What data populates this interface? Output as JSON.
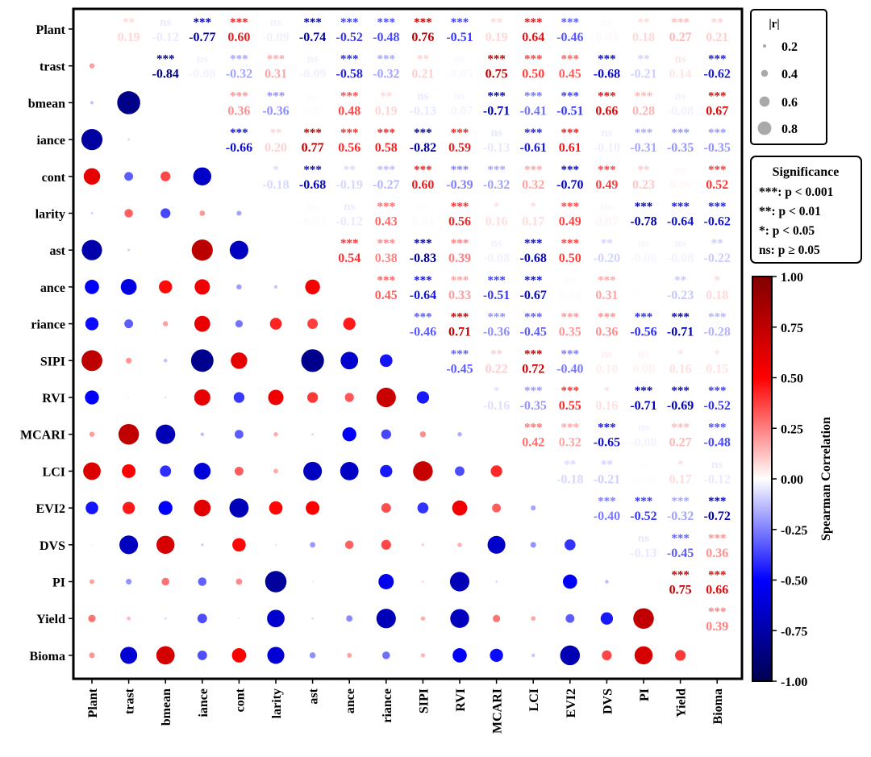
{
  "chart_data": {
    "type": "heatmap",
    "subtype": "correlation-matrix (lower: circles sized by |r|, upper: r values with significance stars)",
    "variables": [
      "Plant",
      "trast",
      "bmean",
      "iance",
      "cont",
      "larity",
      "ast",
      "ance",
      "riance",
      "SIPI",
      "RVI",
      "MCARI",
      "LCI",
      "EVI2",
      "DVS",
      "PI",
      "Yield",
      "Bioma"
    ],
    "upper": [
      [
        "",
        "**",
        "ns",
        "***",
        "***",
        "ns",
        "***",
        "***",
        "***",
        "***",
        "***",
        "**",
        "***",
        "***",
        "ns",
        "**",
        "***",
        "**"
      ],
      [
        "0.19",
        "-0.12",
        "-0.77",
        "0.60",
        "-0.09",
        "-0.74",
        "-0.52",
        "-0.48",
        "0.76",
        "-0.51",
        "0.19",
        "0.64",
        "-0.46",
        "0.05",
        "0.18",
        "0.27",
        "0.21"
      ],
      [
        "",
        "",
        "***",
        "ns",
        "***",
        "***",
        "ns",
        "***",
        "***",
        "**",
        "ns",
        "***",
        "***",
        "***",
        "***",
        "**",
        "ns",
        "***"
      ],
      [
        "-0.84",
        "-0.08",
        "-0.32",
        "0.31",
        "-0.09",
        "-0.58",
        "-0.32",
        "0.21",
        "-0.05",
        "0.75",
        "0.50",
        "0.45",
        "-0.68",
        "-0.21",
        "0.14",
        "-0.62"
      ],
      [
        "",
        "",
        "",
        "ns",
        "***",
        "***",
        "ns",
        "***",
        "**",
        "ns",
        "ns",
        "***",
        "***",
        "***",
        "***",
        "***",
        "ns",
        "***"
      ],
      [
        "-0.01",
        "0.36",
        "-0.36",
        "0.03",
        "0.48",
        "0.19",
        "-0.13",
        "-0.07",
        "-0.71",
        "-0.41",
        "-0.51",
        "0.66",
        "0.28",
        "-0.08",
        "0.67"
      ]
    ],
    "r_rows": [
      [
        null,
        0.19,
        -0.12,
        -0.77,
        0.6,
        -0.09,
        -0.74,
        -0.52,
        -0.48,
        0.76,
        -0.51,
        0.19,
        0.64,
        -0.46,
        0.05,
        0.18,
        0.27,
        0.21
      ],
      [
        null,
        null,
        -0.84,
        -0.08,
        -0.32,
        0.31,
        -0.09,
        -0.58,
        -0.32,
        0.21,
        -0.05,
        0.75,
        0.5,
        0.45,
        -0.68,
        -0.21,
        0.14,
        -0.62
      ],
      [
        null,
        null,
        null,
        -0.01,
        0.36,
        -0.36,
        0.03,
        0.48,
        0.19,
        -0.13,
        -0.07,
        -0.71,
        -0.41,
        -0.51,
        0.66,
        0.28,
        -0.08,
        0.67
      ],
      [
        null,
        null,
        null,
        null,
        -0.66,
        0.2,
        0.77,
        0.56,
        0.58,
        -0.82,
        0.59,
        -0.13,
        -0.61,
        0.61,
        -0.1,
        -0.31,
        -0.35,
        -0.35
      ],
      [
        null,
        null,
        null,
        null,
        null,
        -0.18,
        -0.68,
        -0.19,
        -0.27,
        0.6,
        -0.39,
        -0.32,
        0.32,
        -0.7,
        0.49,
        0.23,
        0.06,
        0.52
      ],
      [
        null,
        null,
        null,
        null,
        null,
        null,
        -0.03,
        -0.12,
        0.43,
        0.04,
        0.56,
        0.16,
        0.17,
        0.49,
        0.07,
        -0.78,
        -0.64,
        -0.62
      ],
      [
        null,
        null,
        null,
        null,
        null,
        null,
        null,
        0.54,
        0.38,
        -0.83,
        0.39,
        -0.08,
        -0.68,
        0.5,
        -0.2,
        -0.06,
        -0.08,
        -0.22
      ],
      [
        null,
        null,
        null,
        null,
        null,
        null,
        null,
        null,
        0.45,
        -0.64,
        0.33,
        -0.51,
        -0.67,
        0.04,
        0.31,
        0.02,
        -0.23,
        0.18
      ],
      [
        null,
        null,
        null,
        null,
        null,
        null,
        null,
        null,
        null,
        -0.46,
        0.71,
        -0.36,
        -0.45,
        0.35,
        0.36,
        -0.56,
        -0.71,
        -0.28
      ],
      [
        null,
        null,
        null,
        null,
        null,
        null,
        null,
        null,
        null,
        null,
        -0.45,
        0.22,
        0.72,
        -0.4,
        0.1,
        0.08,
        0.16,
        0.15
      ],
      [
        null,
        null,
        null,
        null,
        null,
        null,
        null,
        null,
        null,
        null,
        null,
        -0.16,
        -0.35,
        0.55,
        0.16,
        -0.71,
        -0.69,
        -0.52
      ],
      [
        null,
        null,
        null,
        null,
        null,
        null,
        null,
        null,
        null,
        null,
        null,
        null,
        0.42,
        0.32,
        -0.65,
        -0.08,
        0.27,
        -0.48
      ],
      [
        null,
        null,
        null,
        null,
        null,
        null,
        null,
        null,
        null,
        null,
        null,
        null,
        null,
        -0.18,
        -0.21,
        -0.02,
        0.17,
        -0.12
      ],
      [
        null,
        null,
        null,
        null,
        null,
        null,
        null,
        null,
        null,
        null,
        null,
        null,
        null,
        null,
        -0.4,
        -0.52,
        -0.32,
        -0.72
      ],
      [
        null,
        null,
        null,
        null,
        null,
        null,
        null,
        null,
        null,
        null,
        null,
        null,
        null,
        null,
        null,
        -0.13,
        -0.45,
        0.36
      ],
      [
        null,
        null,
        null,
        null,
        null,
        null,
        null,
        null,
        null,
        null,
        null,
        null,
        null,
        null,
        null,
        null,
        0.75,
        0.66
      ],
      [
        null,
        null,
        null,
        null,
        null,
        null,
        null,
        null,
        null,
        null,
        null,
        null,
        null,
        null,
        null,
        null,
        null,
        0.39
      ],
      [
        null,
        null,
        null,
        null,
        null,
        null,
        null,
        null,
        null,
        null,
        null,
        null,
        null,
        null,
        null,
        null,
        null,
        null
      ]
    ],
    "sig_rows": [
      [
        null,
        "**",
        "ns",
        "***",
        "***",
        "ns",
        "***",
        "***",
        "***",
        "***",
        "***",
        "**",
        "***",
        "***",
        "ns",
        "**",
        "***",
        "**"
      ],
      [
        null,
        null,
        "***",
        "ns",
        "***",
        "***",
        "ns",
        "***",
        "***",
        "**",
        "ns",
        "***",
        "***",
        "***",
        "***",
        "**",
        "ns",
        "***"
      ],
      [
        null,
        null,
        null,
        "ns",
        "***",
        "***",
        "ns",
        "***",
        "**",
        "ns",
        "ns",
        "***",
        "***",
        "***",
        "***",
        "***",
        "ns",
        "***"
      ],
      [
        null,
        null,
        null,
        null,
        "***",
        "**",
        "***",
        "***",
        "***",
        "***",
        "***",
        "ns",
        "***",
        "***",
        "ns",
        "***",
        "***",
        "***"
      ],
      [
        null,
        null,
        null,
        null,
        null,
        "*",
        "***",
        "**",
        "***",
        "***",
        "***",
        "***",
        "***",
        "***",
        "***",
        "**",
        "ns",
        "***"
      ],
      [
        null,
        null,
        null,
        null,
        null,
        null,
        "ns",
        "ns",
        "***",
        "ns",
        "***",
        "*",
        "*",
        "***",
        "ns",
        "***",
        "***",
        "***"
      ],
      [
        null,
        null,
        null,
        null,
        null,
        null,
        null,
        "***",
        "***",
        "***",
        "***",
        "ns",
        "***",
        "***",
        "**",
        "ns",
        "ns",
        "**"
      ],
      [
        null,
        null,
        null,
        null,
        null,
        null,
        null,
        null,
        "***",
        "***",
        "***",
        "***",
        "***",
        "ns",
        "***",
        "ns",
        "**",
        "*"
      ],
      [
        null,
        null,
        null,
        null,
        null,
        null,
        null,
        null,
        null,
        "***",
        "***",
        "***",
        "***",
        "***",
        "***",
        "***",
        "***",
        "***"
      ],
      [
        null,
        null,
        null,
        null,
        null,
        null,
        null,
        null,
        null,
        null,
        "***",
        "**",
        "***",
        "***",
        "ns",
        "ns",
        "*",
        "*"
      ],
      [
        null,
        null,
        null,
        null,
        null,
        null,
        null,
        null,
        null,
        null,
        null,
        "*",
        "***",
        "***",
        "*",
        "***",
        "***",
        "***"
      ],
      [
        null,
        null,
        null,
        null,
        null,
        null,
        null,
        null,
        null,
        null,
        null,
        null,
        "***",
        "***",
        "***",
        "ns",
        "***",
        "***"
      ],
      [
        null,
        null,
        null,
        null,
        null,
        null,
        null,
        null,
        null,
        null,
        null,
        null,
        null,
        "**",
        "**",
        "ns",
        "*",
        "ns"
      ],
      [
        null,
        null,
        null,
        null,
        null,
        null,
        null,
        null,
        null,
        null,
        null,
        null,
        null,
        null,
        "***",
        "***",
        "***",
        "***"
      ],
      [
        null,
        null,
        null,
        null,
        null,
        null,
        null,
        null,
        null,
        null,
        null,
        null,
        null,
        null,
        null,
        "ns",
        "***",
        "***"
      ],
      [
        null,
        null,
        null,
        null,
        null,
        null,
        null,
        null,
        null,
        null,
        null,
        null,
        null,
        null,
        null,
        null,
        "***",
        "***"
      ],
      [
        null,
        null,
        null,
        null,
        null,
        null,
        null,
        null,
        null,
        null,
        null,
        null,
        null,
        null,
        null,
        null,
        null,
        "***"
      ],
      [
        null,
        null,
        null,
        null,
        null,
        null,
        null,
        null,
        null,
        null,
        null,
        null,
        null,
        null,
        null,
        null,
        null,
        null
      ]
    ],
    "size_legend": {
      "title": "|r|",
      "values": [
        0.2,
        0.4,
        0.6,
        0.8
      ],
      "labels": [
        "0.2",
        "0.4",
        "0.6",
        "0.8"
      ]
    },
    "significance_legend": {
      "title": "Significance",
      "items": [
        "***: p < 0.001",
        "**: p < 0.01",
        "*: p < 0.05",
        "ns: p ≥ 0.05"
      ]
    },
    "colorbar": {
      "label": "Spearman Correlation",
      "range": [
        -1.0,
        1.0
      ],
      "ticks": [
        1.0,
        0.75,
        0.5,
        0.25,
        0.0,
        -0.25,
        -0.5,
        -0.75,
        -1.0
      ],
      "tick_labels": [
        "1.00",
        "0.75",
        "0.50",
        "0.25",
        "0.00",
        "-0.25",
        "-0.50",
        "-0.75",
        "-1.00"
      ],
      "colormap": "seismic_r (dark red = +1, white = 0, dark blue = -1)",
      "colors": {
        "pos_end": "#800000",
        "pos_mid": "#ff0000",
        "zero": "#ffffff",
        "neg_mid": "#0000ff",
        "neg_end": "#000050"
      }
    }
  }
}
